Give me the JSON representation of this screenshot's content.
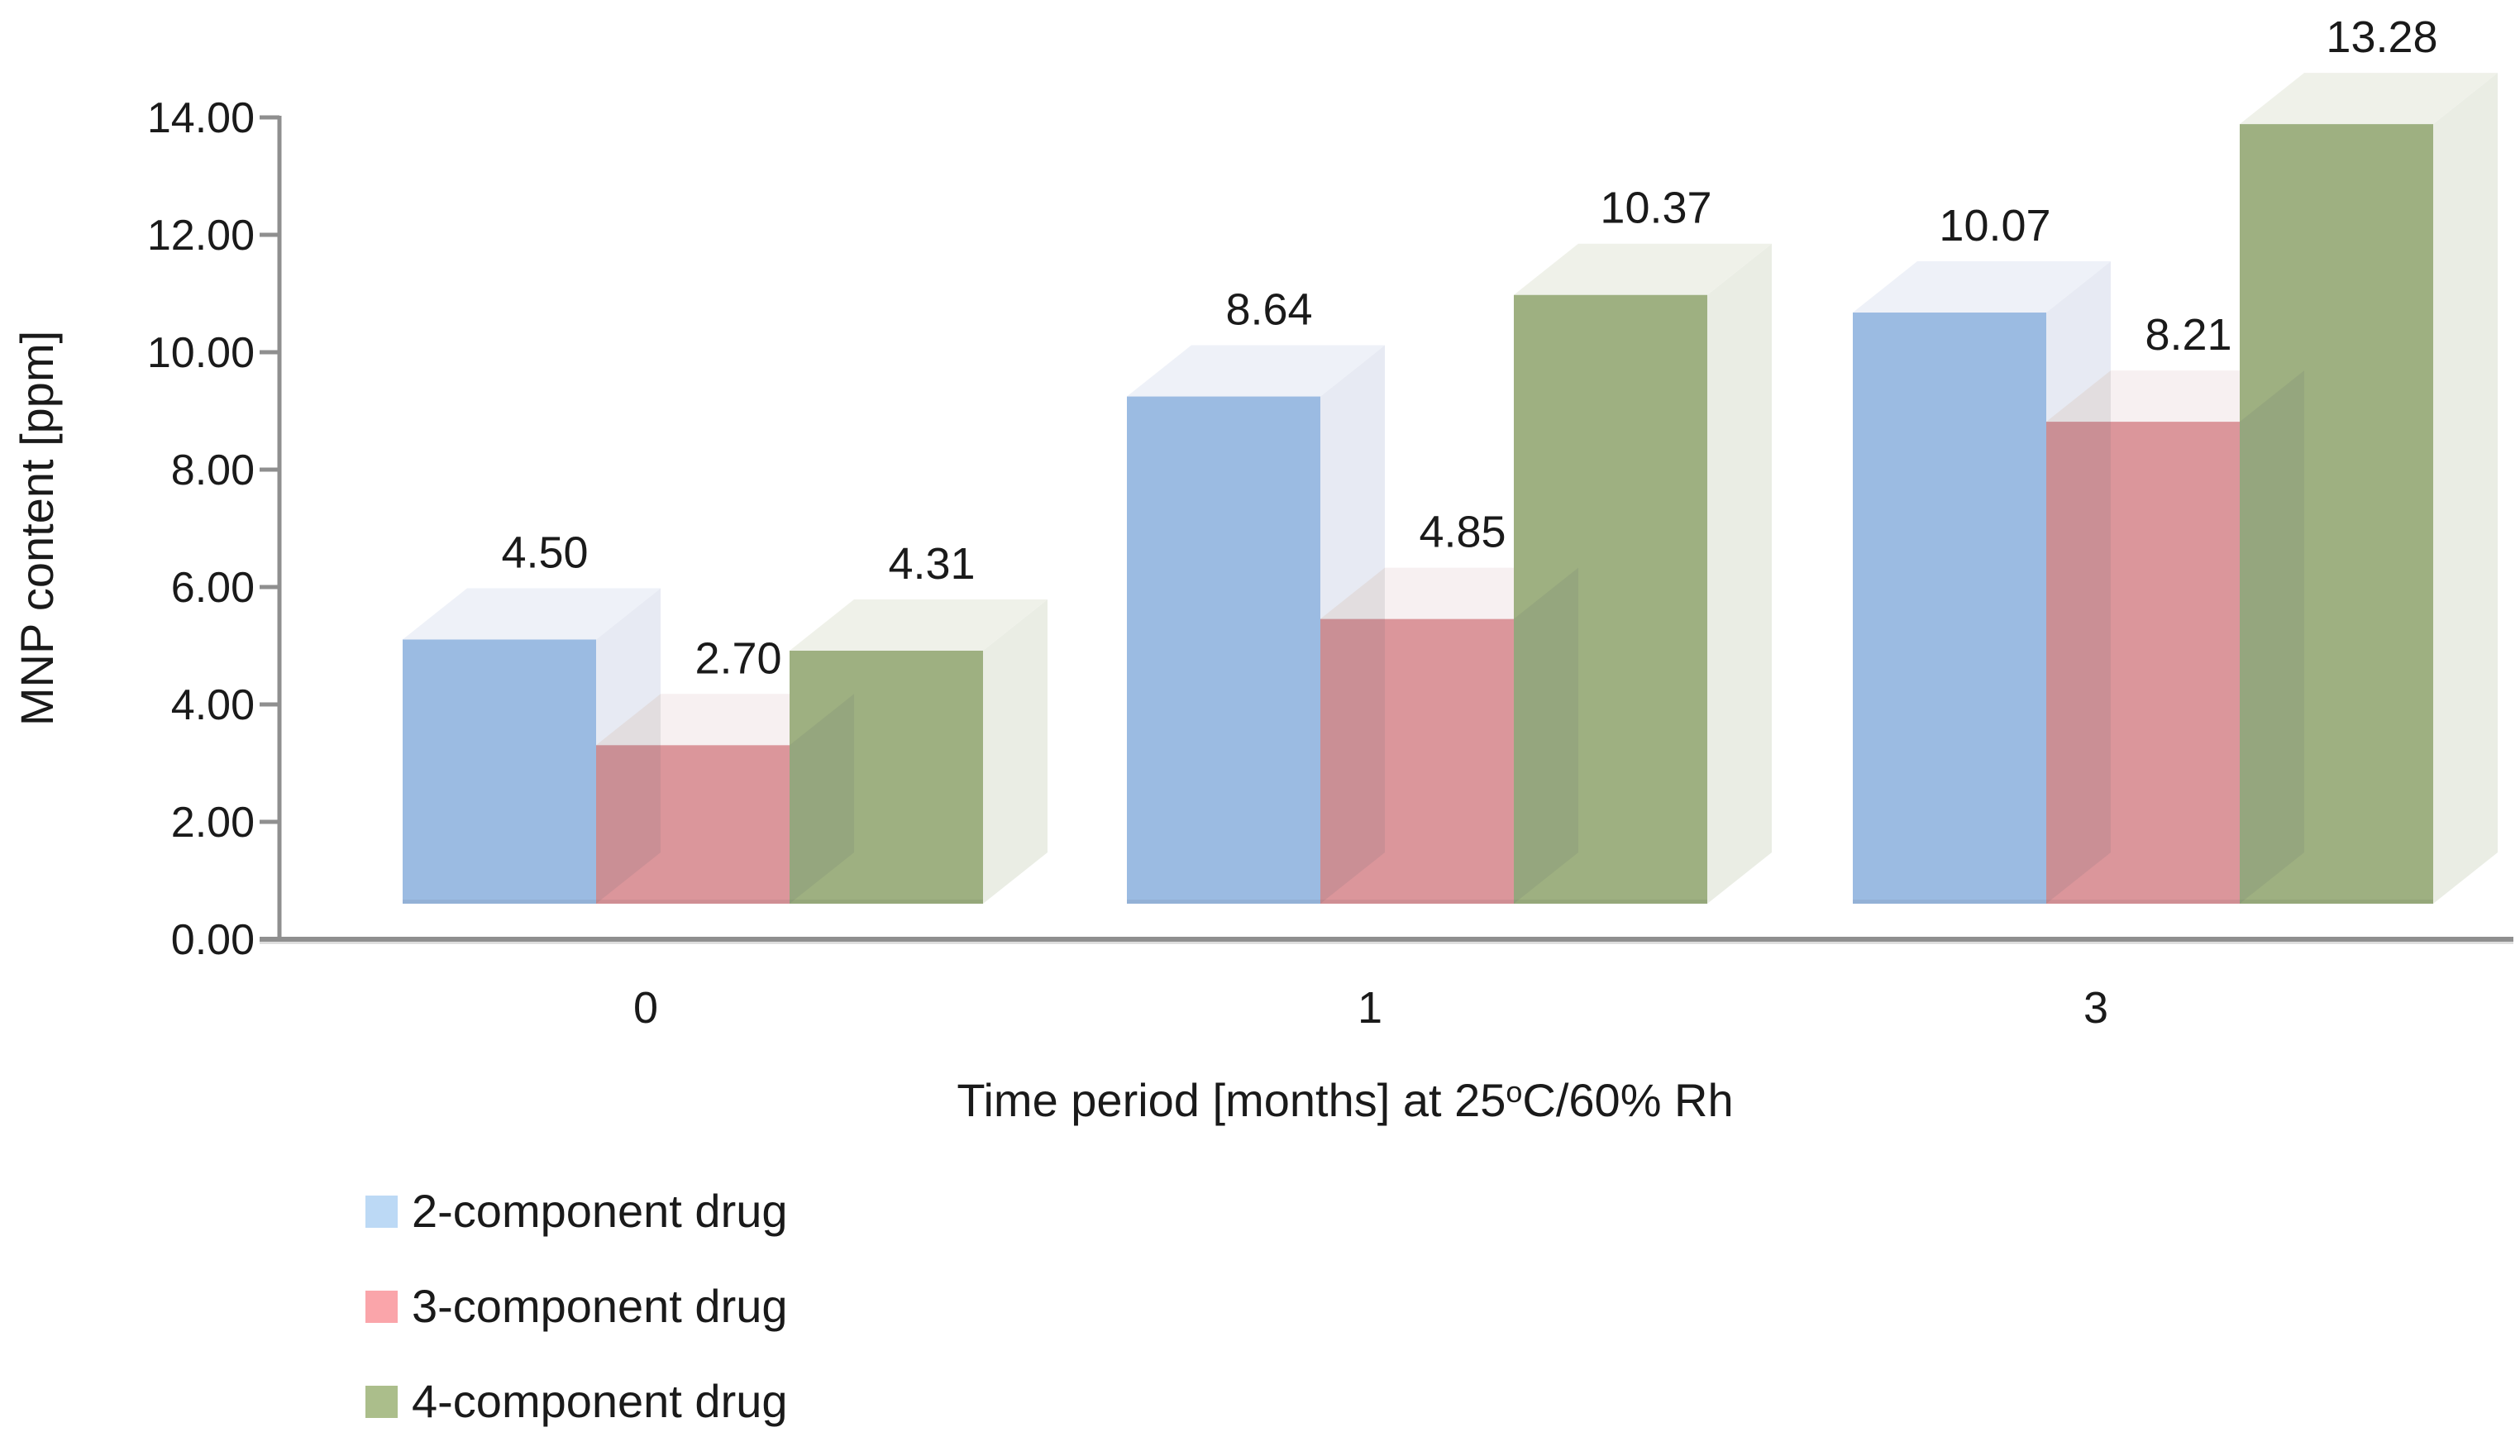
{
  "chart_data": {
    "type": "bar",
    "variant": "3d-clustered-column",
    "title": "",
    "categories": [
      "0",
      "1",
      "3"
    ],
    "series": [
      {
        "name": "2-component drug",
        "values": [
          4.5,
          8.64,
          10.07
        ],
        "legend_color": "#BCD9F5",
        "front_color": "#9BBBE2",
        "top_color": "#EDF0F8",
        "side_color": "#E5E9F2"
      },
      {
        "name": "3-component drug",
        "values": [
          2.7,
          4.85,
          8.21
        ],
        "legend_color": "#FAA5AA",
        "front_color": "#DB969B",
        "top_color": "#F7EFF0",
        "side_color": "#F2E9EA"
      },
      {
        "name": "4-component drug",
        "values": [
          4.31,
          10.37,
          13.28
        ],
        "legend_color": "#ABBE8B",
        "front_color": "#9EB081",
        "top_color": "#EEF0E8",
        "side_color": "#E9ECE2"
      }
    ],
    "value_label_decimals": 2,
    "xlabel": {
      "prefix": "Time period [months] at 25",
      "superscript": "o",
      "suffix": "C/60% Rh"
    },
    "ylabel": "MNP content [ppm]",
    "y_ticks": [
      "14.00",
      "12.00",
      "10.00",
      "8.00",
      "6.00",
      "4.00",
      "2.00",
      "0.00"
    ],
    "ylim": [
      0,
      14
    ],
    "grid": false,
    "legend_position": "bottom-left",
    "colors": {
      "axis": "#8F8F8F",
      "text": "#1A1A1A"
    }
  }
}
